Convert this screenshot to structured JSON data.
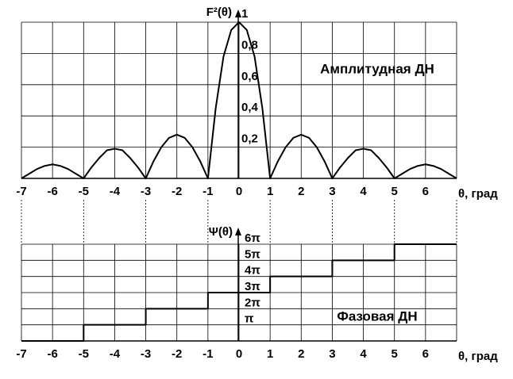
{
  "chart_data": [
    {
      "type": "line",
      "y_label": "F²(θ)",
      "annotation": "Амплитудная ДН",
      "x_label": "θ, град",
      "color": "#000000",
      "grid": true,
      "xlim": [
        -7,
        7
      ],
      "xticks": [
        -7,
        -6,
        -5,
        -4,
        -3,
        -2,
        -1,
        0,
        1,
        2,
        3,
        4,
        5,
        6
      ],
      "ylim": [
        0,
        1
      ],
      "yticks": [
        {
          "value": 0.2,
          "label": "0,2"
        },
        {
          "value": 0.4,
          "label": "0,4"
        },
        {
          "value": 0.6,
          "label": "0,6"
        },
        {
          "value": 0.8,
          "label": "0,8"
        },
        1
      ],
      "x": [
        -7,
        -6.75,
        -6.5,
        -6.25,
        -6,
        -5.75,
        -5.5,
        -5.25,
        -5,
        -4.75,
        -4.5,
        -4.25,
        -4,
        -3.75,
        -3.5,
        -3.25,
        -3,
        -2.75,
        -2.5,
        -2.25,
        -2,
        -1.75,
        -1.5,
        -1.25,
        -1,
        -0.75,
        -0.5,
        -0.25,
        0,
        0.25,
        0.5,
        0.75,
        1,
        1.25,
        1.5,
        1.75,
        2,
        2.25,
        2.5,
        2.75,
        3,
        3.25,
        3.5,
        3.75,
        4,
        4.25,
        4.5,
        4.75,
        5,
        5.25,
        5.5,
        5.75,
        6,
        6.25,
        6.5,
        6.75,
        7
      ],
      "values": [
        0,
        0.03,
        0.06,
        0.08,
        0.09,
        0.08,
        0.06,
        0.03,
        0,
        0.07,
        0.13,
        0.18,
        0.19,
        0.18,
        0.13,
        0.07,
        0,
        0.11,
        0.2,
        0.26,
        0.28,
        0.26,
        0.2,
        0.11,
        0,
        0.45,
        0.78,
        0.95,
        1,
        0.95,
        0.78,
        0.45,
        0,
        0.11,
        0.2,
        0.26,
        0.28,
        0.26,
        0.2,
        0.11,
        0,
        0.07,
        0.13,
        0.18,
        0.19,
        0.18,
        0.13,
        0.07,
        0,
        0.03,
        0.06,
        0.08,
        0.09,
        0.08,
        0.06,
        0.03,
        0
      ]
    },
    {
      "type": "line",
      "y_label": "Ψ(θ)",
      "annotation": "Фазовая ДН",
      "x_label": "θ, град",
      "color": "#000000",
      "grid": true,
      "xlim": [
        -7,
        7
      ],
      "xticks": [
        -7,
        -6,
        -5,
        -4,
        -3,
        -2,
        -1,
        0,
        1,
        2,
        3,
        4,
        5,
        6
      ],
      "ylim": [
        0,
        18.8496
      ],
      "yticks": [
        {
          "value": 3.1416,
          "label": "π"
        },
        {
          "value": 6.2832,
          "label": "2π"
        },
        {
          "value": 9.4248,
          "label": "3π"
        },
        {
          "value": 12.5664,
          "label": "4π"
        },
        {
          "value": 15.708,
          "label": "5π"
        },
        {
          "value": 18.8496,
          "label": "6π"
        }
      ],
      "x": [
        -7,
        -5,
        -5,
        -3,
        -3,
        -1,
        -1,
        1,
        1,
        3,
        3,
        5,
        5,
        7
      ],
      "values": [
        0,
        0,
        3.1416,
        3.1416,
        6.2832,
        6.2832,
        9.4248,
        9.4248,
        12.5664,
        12.5664,
        15.708,
        15.708,
        18.8496,
        18.8496
      ]
    }
  ]
}
